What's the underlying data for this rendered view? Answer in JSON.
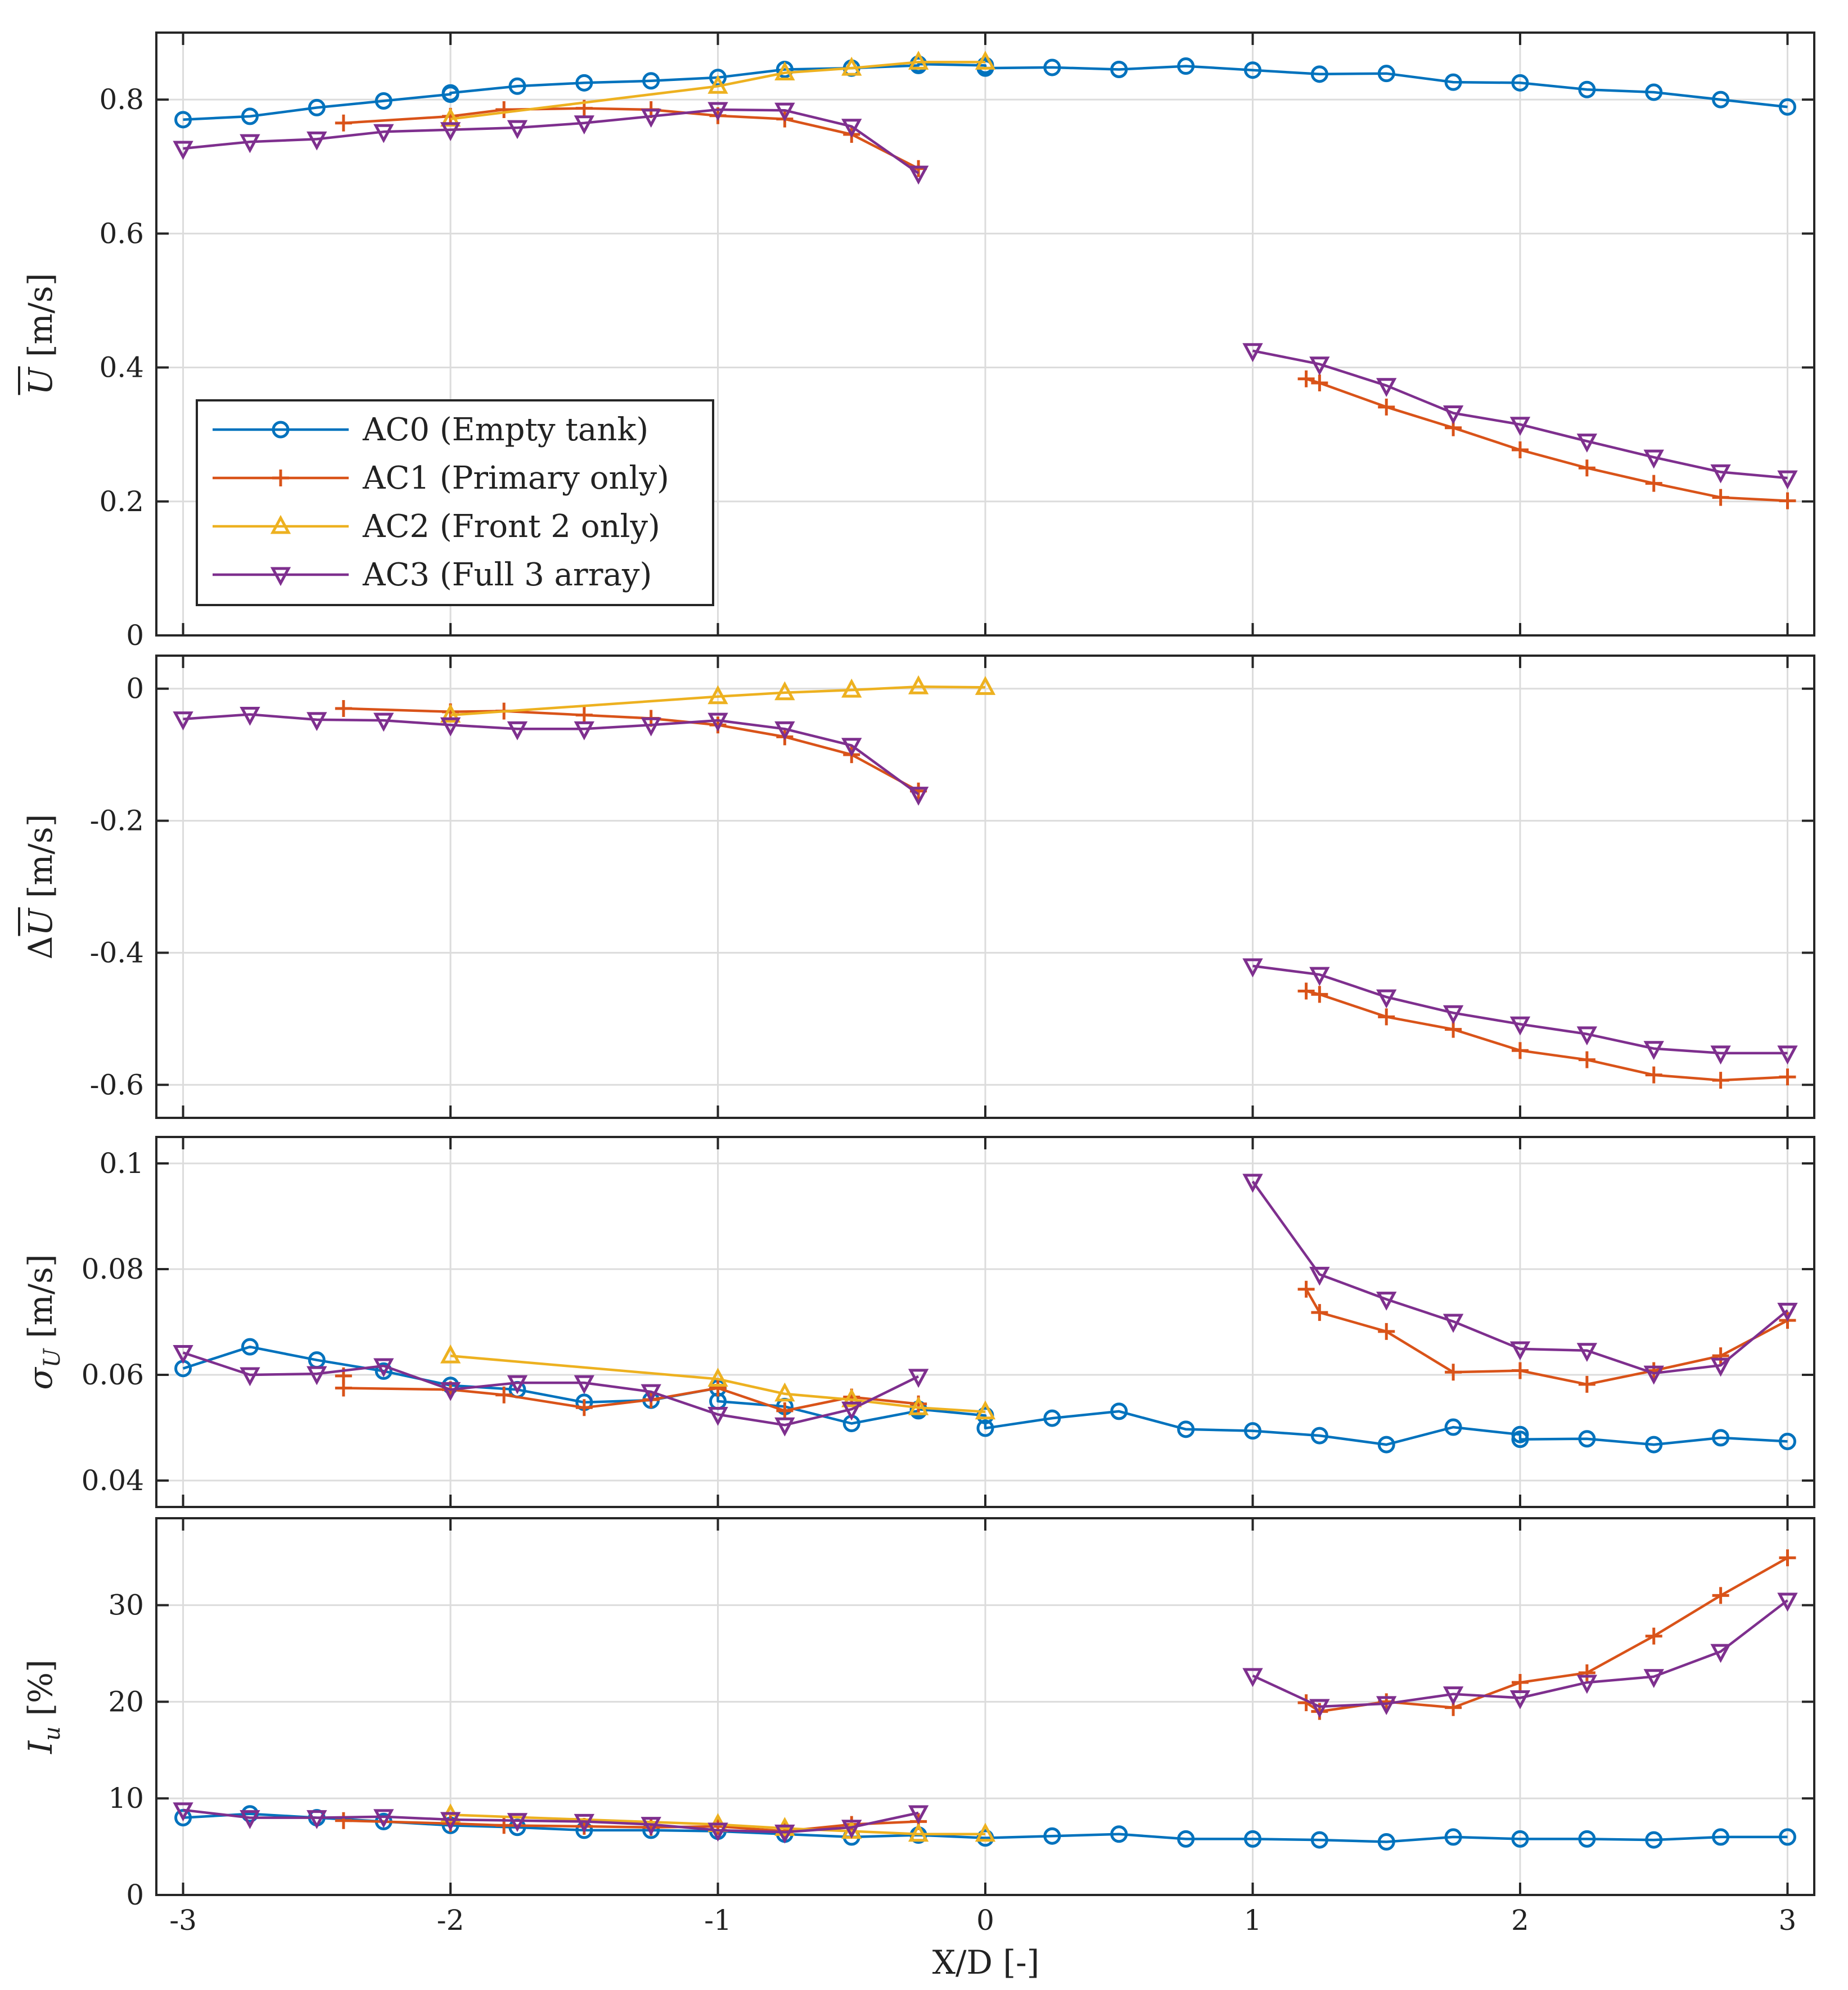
{
  "figure": {
    "xlabel": "X/D [-]",
    "xlim": [
      -3.1,
      3.1
    ],
    "xticks": [
      -3,
      -2,
      -1,
      0,
      1,
      2,
      3
    ],
    "xticklabels": [
      "-3",
      "-2",
      "-1",
      "0",
      "1",
      "2",
      "3"
    ]
  },
  "series_styles": [
    {
      "name": "AC0 (Empty tank)",
      "color": "#0072BD",
      "marker": "circle"
    },
    {
      "name": "AC1 (Primary only)",
      "color": "#D95319",
      "marker": "plus"
    },
    {
      "name": "AC2 (Front 2 only)",
      "color": "#EDB120",
      "marker": "triangle-up"
    },
    {
      "name": "AC3 (Full 3 array)",
      "color": "#7E2F8E",
      "marker": "triangle-down"
    }
  ],
  "legend": {
    "placement": "lower-left of top panel",
    "entries": [
      "AC0 (Empty tank)",
      "AC1 (Primary only)",
      "AC2 (Front 2 only)",
      "AC3 (Full 3 array)"
    ]
  },
  "chart_data": [
    {
      "type": "line",
      "panel": "mean-velocity",
      "ylabel": "Ū [m/s]",
      "ylabel_main": "U",
      "ylabel_unit": " [m/s]",
      "ylim": [
        0,
        0.9
      ],
      "yticks": [
        0,
        0.2,
        0.4,
        0.6,
        0.8
      ],
      "yticklabels": [
        "0",
        "0.2",
        "0.4",
        "0.6",
        "0.8"
      ],
      "series": [
        {
          "name": "AC0 (Empty tank)",
          "x": [
            -3,
            -2.75,
            -2.5,
            -2.25,
            -2,
            -2,
            -1.75,
            -1.5,
            -1.25,
            -1,
            -0.75,
            -0.5,
            -0.25,
            -0.25,
            0,
            0,
            0.25,
            0.5,
            0.75,
            1,
            1.25,
            1.5,
            1.75,
            2,
            2.25,
            2.5,
            2.75,
            3
          ],
          "y": [
            0.77,
            0.775,
            0.788,
            0.798,
            0.808,
            0.81,
            0.82,
            0.825,
            0.828,
            0.833,
            0.845,
            0.847,
            0.851,
            0.853,
            0.851,
            0.847,
            0.848,
            0.845,
            0.85,
            0.844,
            0.838,
            0.839,
            0.826,
            0.825,
            0.815,
            0.811,
            0.8,
            0.789
          ]
        },
        {
          "name": "AC1 (Primary only)",
          "x": [
            -2.4,
            -2,
            -1.8,
            -1.5,
            -1.25,
            -1,
            -0.75,
            -0.5,
            -0.25,
            null,
            1.2,
            1.25,
            1.5,
            1.75,
            2,
            2.25,
            2.5,
            2.75,
            3
          ],
          "y": [
            0.765,
            0.775,
            0.785,
            0.787,
            0.785,
            0.776,
            0.771,
            0.748,
            0.697,
            null,
            0.383,
            0.377,
            0.341,
            0.31,
            0.277,
            0.25,
            0.227,
            0.206,
            0.201
          ]
        },
        {
          "name": "AC2 (Front 2 only)",
          "x": [
            -2,
            -1,
            -0.75,
            -0.5,
            -0.25,
            0
          ],
          "y": [
            0.771,
            0.82,
            0.84,
            0.847,
            0.856,
            0.856
          ]
        },
        {
          "name": "AC3 (Full 3 array)",
          "x": [
            -3,
            -2.75,
            -2.5,
            -2.25,
            -2,
            -1.75,
            -1.5,
            -1.25,
            -1,
            -0.75,
            -0.5,
            -0.25,
            null,
            1,
            1.25,
            1.5,
            1.75,
            2,
            2.25,
            2.5,
            2.75,
            3
          ],
          "y": [
            0.727,
            0.737,
            0.741,
            0.752,
            0.755,
            0.758,
            0.765,
            0.775,
            0.785,
            0.784,
            0.76,
            0.69,
            null,
            0.425,
            0.405,
            0.373,
            0.332,
            0.315,
            0.29,
            0.266,
            0.244,
            0.235
          ]
        }
      ]
    },
    {
      "type": "line",
      "panel": "velocity-deficit",
      "ylabel": "ΔŪ [m/s]",
      "ylabel_main": "U",
      "ylabel_prefix": "Δ",
      "ylabel_unit": " [m/s]",
      "ylim": [
        -0.65,
        0.05
      ],
      "yticks": [
        -0.6,
        -0.4,
        -0.2,
        0
      ],
      "yticklabels": [
        "-0.6",
        "-0.4",
        "-0.2",
        "0"
      ],
      "series": [
        {
          "name": "AC1 (Primary only)",
          "x": [
            -2.4,
            -2,
            -1.8,
            -1.5,
            -1.25,
            -1,
            -0.75,
            -0.5,
            -0.25,
            null,
            1.2,
            1.25,
            1.5,
            1.75,
            2,
            2.25,
            2.5,
            2.75,
            3
          ],
          "y": [
            -0.03,
            -0.035,
            -0.034,
            -0.04,
            -0.045,
            -0.055,
            -0.073,
            -0.1,
            -0.155,
            null,
            -0.458,
            -0.463,
            -0.497,
            -0.516,
            -0.548,
            -0.562,
            -0.585,
            -0.593,
            -0.588
          ]
        },
        {
          "name": "AC2 (Front 2 only)",
          "x": [
            -2,
            -1,
            -0.75,
            -0.5,
            -0.25,
            0
          ],
          "y": [
            -0.04,
            -0.012,
            -0.006,
            -0.002,
            0.003,
            0.002
          ]
        },
        {
          "name": "AC3 (Full 3 array)",
          "x": [
            -3,
            -2.75,
            -2.5,
            -2.25,
            -2,
            -1.75,
            -1.5,
            -1.25,
            -1,
            -0.75,
            -0.5,
            -0.25,
            null,
            1,
            1.25,
            1.5,
            1.75,
            2,
            2.25,
            2.5,
            2.75,
            3
          ],
          "y": [
            -0.046,
            -0.039,
            -0.047,
            -0.048,
            -0.055,
            -0.061,
            -0.061,
            -0.055,
            -0.048,
            -0.061,
            -0.086,
            -0.16,
            null,
            -0.42,
            -0.433,
            -0.467,
            -0.491,
            -0.508,
            -0.523,
            -0.545,
            -0.552,
            -0.552
          ]
        }
      ]
    },
    {
      "type": "line",
      "panel": "velocity-std",
      "ylabel": "σU [m/s]",
      "ylabel_main": "σ",
      "ylabel_sub": "U",
      "ylabel_unit": " [m/s]",
      "ylim": [
        0.035,
        0.105
      ],
      "yticks": [
        0.04,
        0.06,
        0.08,
        0.1
      ],
      "yticklabels": [
        "0.04",
        "0.06",
        "0.08",
        "0.1"
      ],
      "series": [
        {
          "name": "AC0 (Empty tank)",
          "x": [
            -3,
            -2.75,
            -2.5,
            -2.25,
            -2,
            -1.75,
            -1.5,
            -1.25,
            -1,
            -1,
            -0.75,
            -0.5,
            -0.25,
            -0.25,
            0,
            0,
            0.25,
            0.5,
            0.75,
            1,
            1.25,
            1.5,
            1.75,
            2,
            2,
            2.25,
            2.5,
            2.75,
            3
          ],
          "y": [
            0.0612,
            0.0653,
            0.0628,
            0.0607,
            0.058,
            0.0572,
            0.0548,
            0.0552,
            0.0575,
            0.055,
            0.054,
            0.0508,
            0.0532,
            0.0535,
            0.0523,
            0.0499,
            0.0518,
            0.0531,
            0.0497,
            0.0494,
            0.0485,
            0.0468,
            0.0501,
            0.0487,
            0.0478,
            0.0479,
            0.0468,
            0.0481,
            0.0474
          ]
        },
        {
          "name": "AC1 (Primary only)",
          "x": [
            -2.4,
            -2.4,
            -2,
            -1.8,
            -1.5,
            -1.25,
            -1,
            -0.75,
            -0.5,
            -0.25,
            null,
            1.2,
            1.25,
            1.5,
            1.75,
            2,
            2.25,
            2.5,
            2.75,
            3
          ],
          "y": [
            0.0598,
            0.0575,
            0.0572,
            0.0562,
            0.0538,
            0.0553,
            0.0575,
            0.0532,
            0.0558,
            0.0545,
            null,
            0.0762,
            0.0718,
            0.0682,
            0.0605,
            0.0608,
            0.0582,
            0.0608,
            0.0636,
            0.0703
          ]
        },
        {
          "name": "AC2 (Front 2 only)",
          "x": [
            -2,
            -1,
            -0.75,
            -0.5,
            -0.25,
            0
          ],
          "y": [
            0.0636,
            0.0592,
            0.0564,
            0.0553,
            0.0538,
            0.053
          ]
        },
        {
          "name": "AC3 (Full 3 array)",
          "x": [
            -3,
            -2.75,
            -2.5,
            -2.25,
            -2,
            -1.75,
            -1.5,
            -1.25,
            -1,
            -0.75,
            -0.5,
            -0.25,
            null,
            1,
            1.25,
            1.5,
            1.75,
            2,
            2.25,
            2.5,
            2.75,
            3
          ],
          "y": [
            0.0642,
            0.06,
            0.0602,
            0.0617,
            0.0572,
            0.0585,
            0.0585,
            0.0568,
            0.0525,
            0.0505,
            0.0535,
            0.0597,
            null,
            0.0966,
            0.079,
            0.0743,
            0.0701,
            0.0649,
            0.0646,
            0.0603,
            0.0618,
            0.0722
          ]
        }
      ]
    },
    {
      "type": "line",
      "panel": "turbulence-intensity",
      "ylabel": "Iu [%]",
      "ylabel_main": "I",
      "ylabel_sub": "u",
      "ylabel_unit": " [%]",
      "ylim": [
        0,
        39
      ],
      "yticks": [
        0,
        10,
        20,
        30
      ],
      "yticklabels": [
        "0",
        "10",
        "20",
        "30"
      ],
      "series": [
        {
          "name": "AC0 (Empty tank)",
          "x": [
            -3,
            -2.75,
            -2.5,
            -2.25,
            -2,
            -1.75,
            -1.5,
            -1.25,
            -1,
            -0.75,
            -0.5,
            -0.25,
            0,
            0.25,
            0.5,
            0.75,
            1,
            1.25,
            1.5,
            1.75,
            2,
            2.25,
            2.5,
            2.75,
            3
          ],
          "y": [
            8.0,
            8.4,
            8.0,
            7.6,
            7.2,
            7.0,
            6.7,
            6.7,
            6.6,
            6.3,
            6.0,
            6.2,
            5.9,
            6.1,
            6.3,
            5.8,
            5.8,
            5.7,
            5.5,
            6.0,
            5.8,
            5.8,
            5.7,
            6.0,
            6.0
          ]
        },
        {
          "name": "AC1 (Primary only)",
          "x": [
            -2.4,
            -2,
            -1.8,
            -1.5,
            -1.25,
            -1,
            -0.75,
            -0.5,
            -0.25,
            null,
            1.2,
            1.25,
            1.5,
            1.75,
            2,
            2.25,
            2.5,
            2.75,
            3
          ],
          "y": [
            7.7,
            7.4,
            7.2,
            7.1,
            7.0,
            7.1,
            6.6,
            7.3,
            7.6,
            null,
            19.9,
            19.0,
            20.0,
            19.4,
            22.0,
            23.0,
            26.8,
            31.0,
            34.9
          ]
        },
        {
          "name": "AC2 (Front 2 only)",
          "x": [
            -2,
            -1,
            -0.75,
            -0.5,
            -0.25,
            0
          ],
          "y": [
            8.3,
            7.3,
            6.9,
            6.6,
            6.3,
            6.3
          ]
        },
        {
          "name": "AC3 (Full 3 array)",
          "x": [
            -3,
            -2.75,
            -2.5,
            -2.25,
            -2,
            -1.75,
            -1.5,
            -1.25,
            -1,
            -0.75,
            -0.5,
            -0.25,
            null,
            1,
            1.25,
            1.5,
            1.75,
            2,
            2.25,
            2.5,
            2.75,
            3
          ],
          "y": [
            8.8,
            8.0,
            8.0,
            8.1,
            7.8,
            7.7,
            7.6,
            7.3,
            6.7,
            6.5,
            7.0,
            8.5,
            null,
            22.7,
            19.5,
            19.8,
            20.8,
            20.4,
            22.0,
            22.6,
            25.2,
            30.5
          ]
        }
      ]
    }
  ]
}
